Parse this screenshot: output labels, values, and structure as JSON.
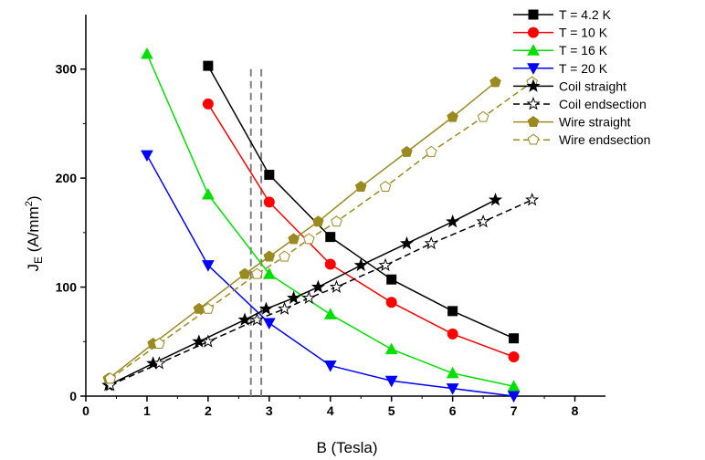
{
  "chart_data": {
    "type": "line",
    "xlabel": "B (Tesla)",
    "ylabel_main": "J",
    "ylabel_sub": "E",
    "ylabel_unit_pre": " (A/mm",
    "ylabel_unit_sup": "2",
    "ylabel_unit_post": ")",
    "xlim": [
      0,
      8.5
    ],
    "ylim": [
      0,
      350
    ],
    "xticks": [
      0,
      1,
      2,
      3,
      4,
      5,
      6,
      7,
      8
    ],
    "yticks": [
      0,
      100,
      200,
      300
    ],
    "grid": false,
    "legend_position": "top-right",
    "vertical_lines": [
      2.7,
      2.87
    ],
    "series": [
      {
        "name": "T = 4.2 K",
        "color": "#000000",
        "marker": "square",
        "fill": "filled",
        "dash": "solid",
        "x": [
          2,
          3,
          4,
          5,
          6,
          7
        ],
        "y": [
          303,
          203,
          146,
          107,
          78,
          53
        ]
      },
      {
        "name": "T = 10 K",
        "color": "#ff0000",
        "marker": "circle",
        "fill": "filled",
        "dash": "solid",
        "x": [
          2,
          3,
          4,
          5,
          6,
          7
        ],
        "y": [
          268,
          178,
          121,
          86,
          57,
          36
        ]
      },
      {
        "name": "T = 16 K",
        "color": "#00e000",
        "marker": "triangle-up",
        "fill": "filled",
        "dash": "solid",
        "x": [
          1,
          2,
          3,
          4,
          5,
          6,
          7
        ],
        "y": [
          314,
          185,
          112,
          75,
          43,
          21,
          9
        ]
      },
      {
        "name": "T = 20 K",
        "color": "#0000ff",
        "marker": "triangle-down",
        "fill": "filled",
        "dash": "solid",
        "x": [
          1,
          2,
          3,
          4,
          5,
          6,
          7
        ],
        "y": [
          221,
          120,
          67,
          28,
          14,
          7,
          0
        ]
      },
      {
        "name": "Coil straight",
        "color": "#000000",
        "marker": "star",
        "fill": "filled",
        "dash": "solid",
        "x": [
          0.37,
          1.1,
          1.85,
          2.6,
          2.95,
          3.4,
          3.8,
          4.5,
          5.25,
          6,
          6.7
        ],
        "y": [
          10,
          30,
          50,
          70,
          80,
          90,
          100,
          120,
          140,
          160,
          180
        ]
      },
      {
        "name": "Coil endsection",
        "color": "#000000",
        "marker": "star",
        "fill": "open",
        "dash": "dashed",
        "x": [
          0.4,
          1.2,
          2.0,
          2.8,
          3.25,
          3.65,
          4.1,
          4.9,
          5.65,
          6.5,
          7.3
        ],
        "y": [
          10,
          30,
          50,
          70,
          80,
          90,
          100,
          120,
          140,
          160,
          180
        ]
      },
      {
        "name": "Wire straight",
        "color": "#9a8a1f",
        "marker": "pentagon",
        "fill": "filled",
        "dash": "solid",
        "x": [
          0.37,
          1.1,
          1.85,
          2.6,
          3.0,
          3.4,
          3.8,
          4.5,
          5.25,
          6,
          6.7
        ],
        "y": [
          16,
          48,
          80,
          112,
          128,
          144,
          160,
          192,
          224,
          256,
          288
        ]
      },
      {
        "name": "Wire endsection",
        "color": "#9a8a1f",
        "marker": "pentagon",
        "fill": "open",
        "dash": "dashed",
        "x": [
          0.4,
          1.2,
          2.0,
          2.8,
          3.25,
          3.65,
          4.1,
          4.9,
          5.65,
          6.5,
          7.3
        ],
        "y": [
          16,
          48,
          80,
          112,
          128,
          144,
          160,
          192,
          224,
          256,
          288
        ]
      }
    ]
  }
}
